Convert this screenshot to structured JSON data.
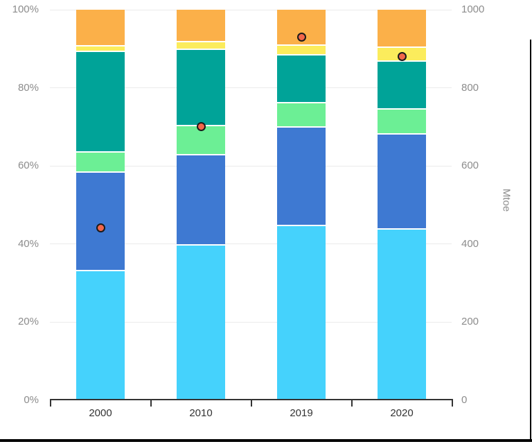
{
  "chart_data": {
    "type": "bar",
    "variant": "stacked-percent-with-scatter-overlay",
    "title": "",
    "categories": [
      "2000",
      "2010",
      "2019",
      "2020"
    ],
    "series": [
      {
        "name": "segment-cyan",
        "color": "#45d2fc",
        "values": [
          33.3,
          40.0,
          45.0,
          44.0
        ]
      },
      {
        "name": "segment-blue",
        "color": "#3e79d2",
        "values": [
          25.3,
          23.0,
          25.1,
          24.3
        ]
      },
      {
        "name": "segment-green",
        "color": "#6cef95",
        "values": [
          5.2,
          7.5,
          6.3,
          6.4
        ]
      },
      {
        "name": "segment-teal",
        "color": "#00a398",
        "values": [
          25.7,
          19.5,
          12.2,
          12.4
        ]
      },
      {
        "name": "segment-yellow",
        "color": "#fbec5c",
        "values": [
          1.5,
          2.0,
          2.6,
          3.5
        ]
      },
      {
        "name": "segment-orange",
        "color": "#fbb049",
        "values": [
          9.0,
          8.0,
          8.8,
          9.4
        ]
      }
    ],
    "overlay_points": {
      "name": "total-mtoe-dots",
      "axis": "right",
      "fill": "#f2664a",
      "stroke": "#1a1a1a",
      "values": [
        442,
        700,
        930,
        880
      ]
    },
    "left_axis": {
      "min": 0,
      "max": 100,
      "ticks": [
        "0%",
        "20%",
        "40%",
        "60%",
        "80%",
        "100%"
      ]
    },
    "right_axis": {
      "min": 0,
      "max": 1000,
      "ticks": [
        "0",
        "200",
        "400",
        "600",
        "800",
        "1000"
      ],
      "label": "Mtoe"
    },
    "grid": true,
    "legend": "none"
  },
  "frame": {
    "right_border_color": "#000000",
    "bottom_border_color": "#000000"
  },
  "style_colors": {
    "gridline": "#ebebeb",
    "axis_text": "#8c8c8c",
    "category_text": "#333333",
    "axis_line": "#333333",
    "background": "#ffffff"
  }
}
